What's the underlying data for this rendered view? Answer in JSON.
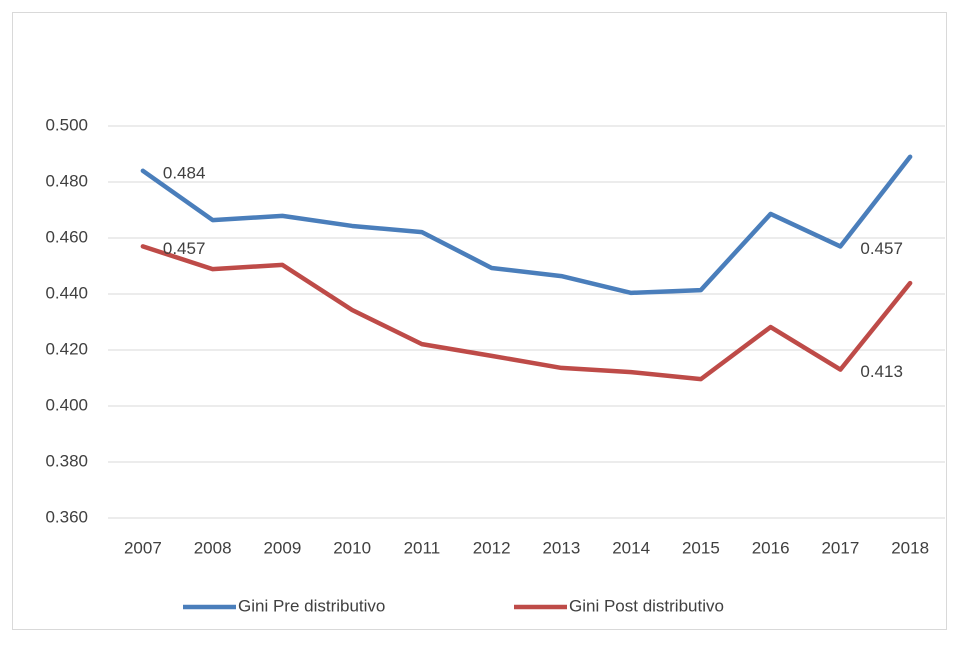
{
  "chart_data": {
    "type": "line",
    "categories": [
      "2007",
      "2008",
      "2009",
      "2010",
      "2011",
      "2012",
      "2013",
      "2014",
      "2015",
      "2016",
      "2017",
      "2018"
    ],
    "series": [
      {
        "name": "Gini Pre distributivo",
        "color": "#4a7ebb",
        "values": [
          0.484,
          0.4664,
          0.4679,
          0.4643,
          0.4621,
          0.4493,
          0.4464,
          0.4404,
          0.4414,
          0.4686,
          0.457,
          0.489
        ],
        "value_labels": [
          "0.484",
          null,
          null,
          null,
          null,
          null,
          null,
          null,
          null,
          null,
          "0.457",
          null
        ]
      },
      {
        "name": "Gini Post distributivo",
        "color": "#be4b48",
        "values": [
          0.457,
          0.4489,
          0.4504,
          0.4343,
          0.4221,
          0.4179,
          0.4136,
          0.4121,
          0.4096,
          0.4282,
          0.413,
          0.4439
        ],
        "value_labels": [
          "0.457",
          null,
          null,
          null,
          null,
          null,
          null,
          null,
          null,
          null,
          "0.413",
          null
        ]
      }
    ],
    "ylim": [
      0.36,
      0.5
    ],
    "yticks": [
      {
        "value": 0.36,
        "label": "0.360"
      },
      {
        "value": 0.38,
        "label": "0.380"
      },
      {
        "value": 0.4,
        "label": "0.400"
      },
      {
        "value": 0.42,
        "label": "0.420"
      },
      {
        "value": 0.44,
        "label": "0.440"
      },
      {
        "value": 0.46,
        "label": "0.460"
      },
      {
        "value": 0.48,
        "label": "0.480"
      },
      {
        "value": 0.5,
        "label": "0.500"
      }
    ],
    "grid": true,
    "legend": "bottom"
  }
}
